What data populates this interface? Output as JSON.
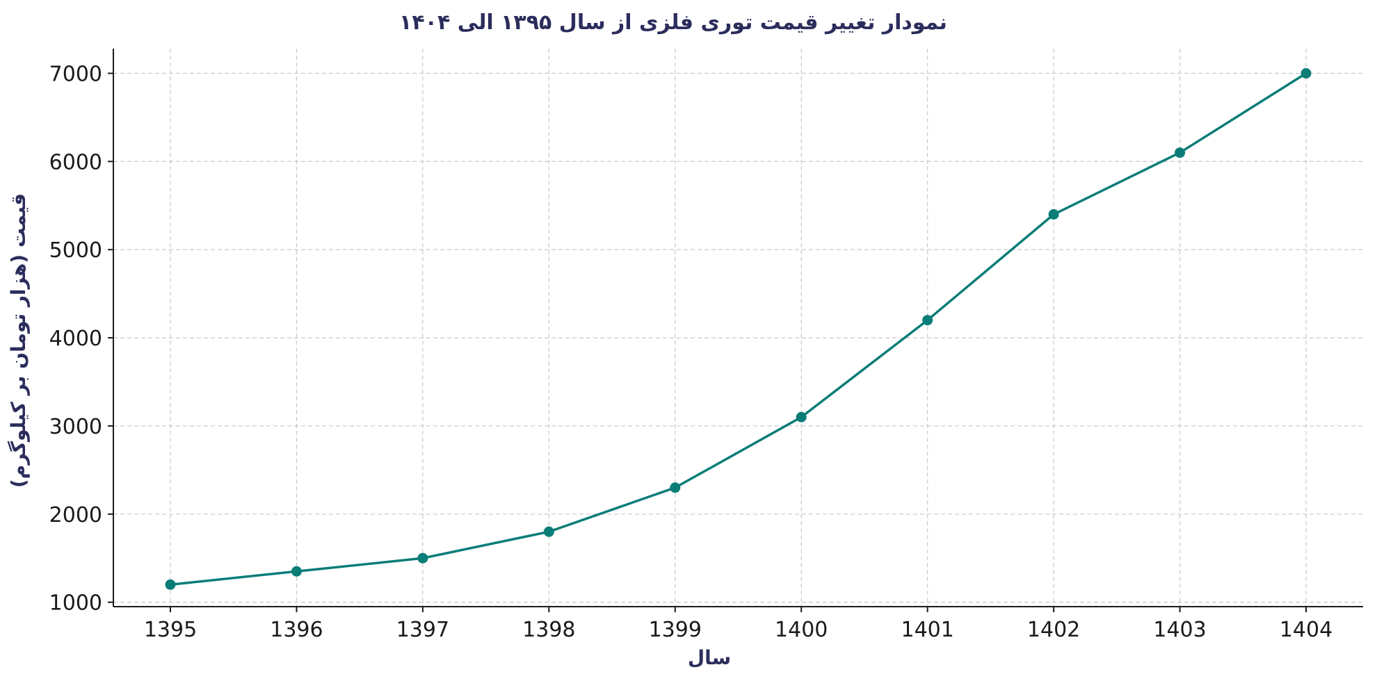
{
  "chart_data": {
    "type": "line",
    "title": "نمودار تغییر قیمت توری فلزی از سال ۱۳۹۵ الی ۱۴۰۴",
    "xlabel": "سال",
    "ylabel": "قیمت (هزار تومان بر کیلوگرم)",
    "x": [
      "1395",
      "1396",
      "1397",
      "1398",
      "1399",
      "1400",
      "1401",
      "1402",
      "1403",
      "1404"
    ],
    "series": [
      {
        "values": [
          1200,
          1350,
          1500,
          1800,
          2300,
          3100,
          4200,
          5400,
          6100,
          7000
        ],
        "color": "#0b7d78"
      }
    ],
    "yticks": [
      1000,
      2000,
      3000,
      4000,
      5000,
      6000,
      7000
    ],
    "ylim": [
      950,
      7280
    ],
    "grid": true,
    "title_color": "#2b2d5c",
    "label_color": "#2b2d5c"
  }
}
